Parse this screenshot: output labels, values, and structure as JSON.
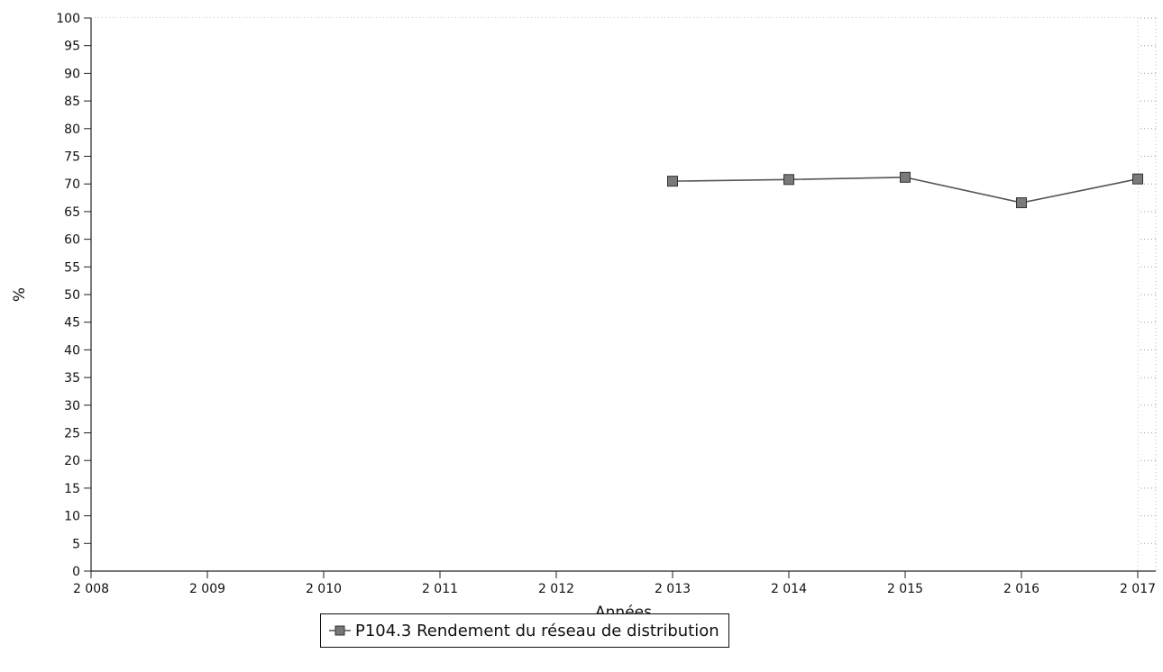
{
  "chart_data": {
    "type": "line",
    "title": "",
    "xlabel": "Années",
    "ylabel": "%",
    "x_ticks": [
      "2 008",
      "2 009",
      "2 010",
      "2 011",
      "2 012",
      "2 013",
      "2 014",
      "2 015",
      "2 016",
      "2 017"
    ],
    "x_values": [
      2008,
      2009,
      2010,
      2011,
      2012,
      2013,
      2014,
      2015,
      2016,
      2017
    ],
    "xlim": [
      2008,
      2017
    ],
    "ylim": [
      0,
      100
    ],
    "y_ticks": [
      "0",
      "5",
      "10",
      "15",
      "20",
      "25",
      "30",
      "35",
      "40",
      "45",
      "50",
      "55",
      "60",
      "65",
      "70",
      "75",
      "80",
      "85",
      "90",
      "95",
      "100"
    ],
    "grid": true,
    "legend_position": "bottom-center",
    "series": [
      {
        "name": "P104.3 Rendement du réseau de distribution",
        "color": "#555555",
        "marker": "square",
        "x": [
          2013,
          2014,
          2015,
          2016,
          2017
        ],
        "y": [
          70.5,
          70.8,
          71.2,
          66.6,
          70.9
        ]
      }
    ]
  }
}
